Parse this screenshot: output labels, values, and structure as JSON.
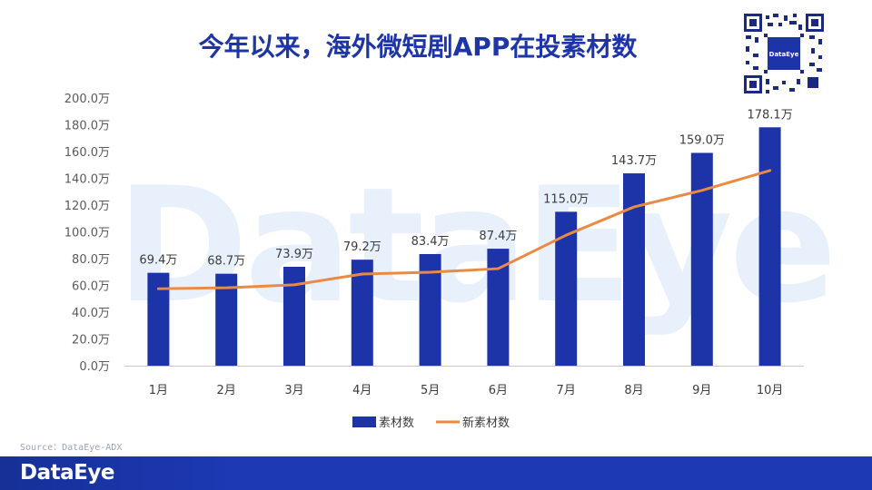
{
  "page": {
    "title": "今年以来，海外微短剧APP在投素材数",
    "watermark": "DataEye",
    "source": "Source：DataEye-ADX",
    "footer_logo": "DataEye",
    "qr_label": "DataEye"
  },
  "colors": {
    "bar": "#1d33a8",
    "line": "#ea8a45",
    "title": "#1d35a6",
    "footer": "#1d39b4"
  },
  "chart_data": {
    "type": "bar",
    "title": "今年以来，海外微短剧APP在投素材数",
    "xlabel": "",
    "ylabel": "",
    "ylim": [
      0,
      200
    ],
    "yticks": [
      "0.0万",
      "20.0万",
      "40.0万",
      "60.0万",
      "80.0万",
      "100.0万",
      "120.0万",
      "140.0万",
      "160.0万",
      "180.0万",
      "200.0万"
    ],
    "categories": [
      "1月",
      "2月",
      "3月",
      "4月",
      "5月",
      "6月",
      "7月",
      "8月",
      "9月",
      "10月"
    ],
    "series": [
      {
        "name": "素材数",
        "kind": "bar",
        "values": [
          69.4,
          68.7,
          73.9,
          79.2,
          83.4,
          87.4,
          115.0,
          143.7,
          159.0,
          178.1
        ],
        "labels": [
          "69.4万",
          "68.7万",
          "73.9万",
          "79.2万",
          "83.4万",
          "87.4万",
          "115.0万",
          "143.7万",
          "159.0万",
          "178.1万"
        ]
      },
      {
        "name": "新素材数",
        "kind": "line",
        "values": [
          57.5,
          58.2,
          60.4,
          68.5,
          69.8,
          72.5,
          97.5,
          118.6,
          131.0,
          145.8
        ]
      }
    ],
    "legend": "bottom",
    "grid": false
  }
}
